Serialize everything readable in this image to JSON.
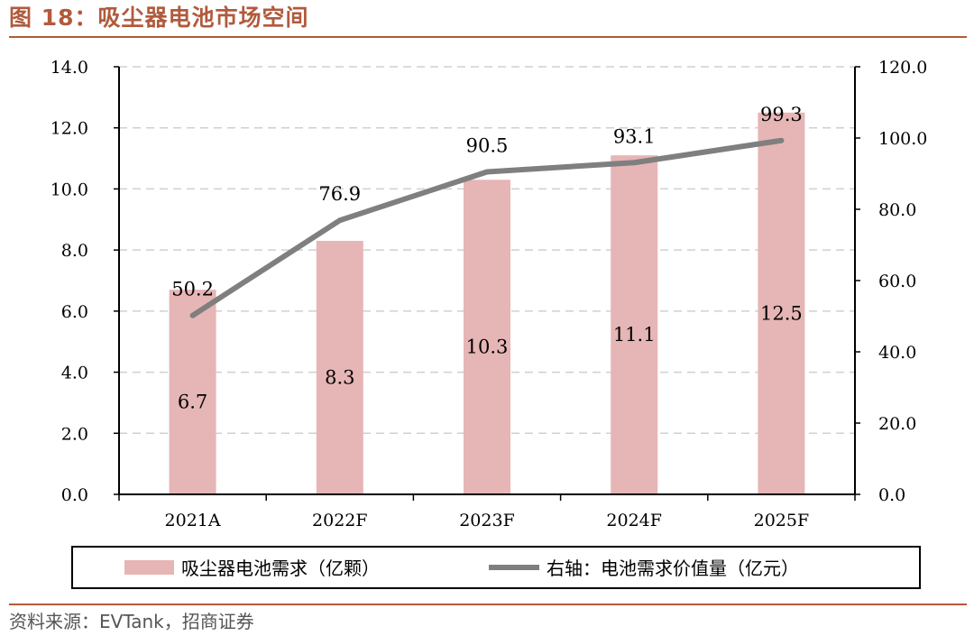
{
  "header": {
    "title": "图 18：吸尘器电池市场空间"
  },
  "footer": {
    "source": "资料来源：EVTank，招商证券"
  },
  "colors": {
    "accent": "#b15a3c",
    "bar": "#e6b5b5",
    "line": "#7f7f7f",
    "grid": "#d0d0d0"
  },
  "chart_data": {
    "type": "bar",
    "title": "吸尘器电池市场空间",
    "categories": [
      "2021A",
      "2022F",
      "2023F",
      "2024F",
      "2025F"
    ],
    "series": [
      {
        "name": "吸尘器电池需求（亿颗）",
        "type": "bar",
        "axis": "left",
        "values": [
          6.7,
          8.3,
          10.3,
          11.1,
          12.5
        ],
        "labels": [
          "6.7",
          "8.3",
          "10.3",
          "11.1",
          "12.5"
        ]
      },
      {
        "name": "右轴：电池需求价值量（亿元）",
        "type": "line",
        "axis": "right",
        "values": [
          50.2,
          76.9,
          90.5,
          93.1,
          99.3
        ],
        "labels": [
          "50.2",
          "76.9",
          "90.5",
          "93.1",
          "99.3"
        ]
      }
    ],
    "y_left": {
      "lim": [
        0,
        14
      ],
      "ticks": [
        "0.0",
        "2.0",
        "4.0",
        "6.0",
        "8.0",
        "10.0",
        "12.0",
        "14.0"
      ]
    },
    "y_right": {
      "lim": [
        0,
        120
      ],
      "ticks": [
        "0.0",
        "20.0",
        "40.0",
        "60.0",
        "80.0",
        "100.0",
        "120.0"
      ]
    },
    "grid": true,
    "legend": {
      "position": "bottom",
      "items": [
        "吸尘器电池需求（亿颗）",
        "右轴：电池需求价值量（亿元）"
      ]
    }
  }
}
